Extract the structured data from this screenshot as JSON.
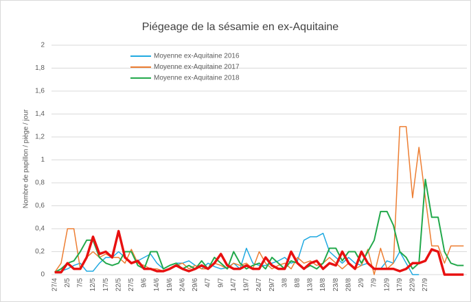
{
  "chart_data": {
    "type": "line",
    "title": "Piégeage de la sésamie en ex-Aquitaine",
    "y_label": "Nombre de papillon / piège / jour",
    "categories": [
      "27/4",
      null,
      "2/5",
      null,
      "7/5",
      null,
      "12/5",
      null,
      "17/5",
      null,
      "22/5",
      null,
      "27/5",
      null,
      "9/6",
      null,
      "14/6",
      null,
      "19/6",
      null,
      "24/6",
      null,
      "29/6",
      null,
      "4/7",
      null,
      "9/7",
      null,
      "14/7",
      null,
      "19/7",
      null,
      "24/7",
      null,
      "29/7",
      null,
      "3/8",
      null,
      "8/8",
      null,
      "13/8",
      null,
      "18/8",
      null,
      "23/8",
      null,
      "28/8",
      null,
      "2/9",
      null,
      "7/9",
      null,
      "12/9",
      null,
      "17/9",
      null,
      "22/9",
      null,
      "27/9",
      null,
      null,
      null,
      null,
      null,
      null
    ],
    "ylim": [
      0,
      2
    ],
    "yticks": [
      0,
      {
        "value": 0.2,
        "label": "0,2"
      },
      {
        "value": 0.4,
        "label": "0,4"
      },
      {
        "value": 0.6,
        "label": "0,6"
      },
      {
        "value": 0.8,
        "label": "0,8"
      },
      1,
      {
        "value": 1.2,
        "label": "1,2"
      },
      {
        "value": 1.4,
        "label": "1,4"
      },
      {
        "value": 1.6,
        "label": "1,6"
      },
      {
        "value": 1.8,
        "label": "1,8"
      },
      2
    ],
    "grid": true,
    "series": [
      {
        "name": "Moyenne ex-Aquitaine 2016",
        "color": "#1fa9e1",
        "width": 1.5,
        "values": [
          0.02,
          0.03,
          0.05,
          0.08,
          0.1,
          0.03,
          0.03,
          0.1,
          0.15,
          0.15,
          0.2,
          0.15,
          0.1,
          0.12,
          0.15,
          0.18,
          0.1,
          0.05,
          0.08,
          0.1,
          0.1,
          0.12,
          0.08,
          0.05,
          0.1,
          0.07,
          0.05,
          0.06,
          0.1,
          0.05,
          0.23,
          0.1,
          0.08,
          0.08,
          0.1,
          0.12,
          0.15,
          0.1,
          0.12,
          0.3,
          0.33,
          0.33,
          0.36,
          0.2,
          0.15,
          0.1,
          0.15,
          0.1,
          0.08,
          0.1,
          0.05,
          0.05,
          0.12,
          0.1,
          0.2,
          0.1,
          0,
          0,
          null,
          null,
          null,
          null,
          null,
          null,
          null
        ]
      },
      {
        "name": "Moyenne ex-Aquitaine 2017",
        "color": "#ed7d31",
        "width": 1.5,
        "values": [
          0.02,
          0.1,
          0.4,
          0.4,
          0.05,
          0.15,
          0.2,
          0.15,
          0.18,
          0.15,
          0.15,
          0.1,
          0.22,
          0.1,
          0.08,
          0.05,
          0.05,
          0.03,
          0.05,
          0.08,
          0.1,
          0.05,
          0.08,
          0.05,
          0.05,
          0.1,
          0.08,
          0.05,
          0.1,
          0.08,
          0.1,
          0.05,
          0.2,
          0.1,
          0.05,
          0.08,
          0.1,
          0.05,
          0.15,
          0.1,
          0.12,
          0.08,
          0.1,
          0.15,
          0.1,
          0.05,
          0.1,
          0.05,
          0.08,
          0.22,
          0,
          0.23,
          0.05,
          0.1,
          1.29,
          1.29,
          0.67,
          1.11,
          0.67,
          0.25,
          0.25,
          0.1,
          0.25,
          0.25,
          0.25
        ]
      },
      {
        "name": "Moyenne ex-Aquitaine 2018",
        "color": "#21a84a",
        "width": 2,
        "values": [
          0.02,
          0.05,
          0.1,
          0.12,
          0.2,
          0.3,
          0.3,
          0.15,
          0.1,
          0.08,
          0.1,
          0.2,
          0.2,
          0.08,
          0.05,
          0.2,
          0.2,
          0.05,
          0.08,
          0.1,
          0.05,
          0.08,
          0.05,
          0.12,
          0.05,
          0.15,
          0.1,
          0.05,
          0.2,
          0.1,
          0.05,
          0.08,
          0.1,
          0.05,
          0.15,
          0.1,
          0.05,
          0.12,
          0.1,
          0.05,
          0.08,
          0.05,
          0.1,
          0.23,
          0.23,
          0.12,
          0.2,
          0.2,
          0.1,
          0.2,
          0.3,
          0.55,
          0.55,
          0.43,
          0.2,
          0.15,
          0.05,
          0.1,
          0.83,
          0.5,
          0.5,
          0.2,
          0.1,
          0.08,
          0.08
        ]
      },
      {
        "color": "#e81010",
        "width": 3.5,
        "values": [
          0.02,
          0.02,
          0.1,
          0.05,
          0.05,
          0.15,
          0.33,
          0.18,
          0.2,
          0.15,
          0.38,
          0.15,
          0.1,
          0.12,
          0.05,
          0.05,
          0.03,
          0.03,
          0.05,
          0.08,
          0.05,
          0.03,
          0.05,
          0.08,
          0.05,
          0.1,
          0.18,
          0.08,
          0.05,
          0.05,
          0.08,
          0.05,
          0.05,
          0.15,
          0.08,
          0.05,
          0.05,
          0.2,
          0.1,
          0.05,
          0.1,
          0.12,
          0.05,
          0.1,
          0.08,
          0.2,
          0.1,
          0.05,
          0.2,
          0.1,
          0.05,
          0.05,
          0.05,
          0.05,
          0.03,
          0.05,
          0.1,
          0.1,
          0.12,
          0.22,
          0.2,
          0,
          0,
          0,
          0
        ]
      }
    ]
  }
}
